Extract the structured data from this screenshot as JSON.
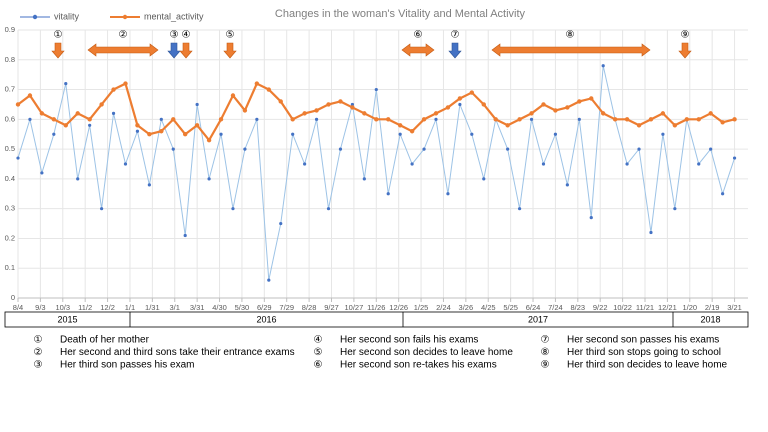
{
  "chart_data": {
    "type": "line",
    "title": "Changes in the woman's Vitality and Mental Activity",
    "x": [
      0,
      16,
      32,
      48,
      64,
      80,
      96,
      112,
      128,
      144,
      160,
      176,
      192,
      208,
      224,
      240,
      256,
      272,
      288,
      304,
      320,
      336,
      352,
      368,
      384,
      400,
      416,
      432,
      448,
      464,
      480,
      496,
      512,
      528,
      544,
      560,
      576,
      592,
      608,
      624,
      640,
      656,
      672,
      688,
      704,
      720,
      736,
      752,
      768,
      784,
      800,
      816,
      832,
      848,
      864,
      880,
      896,
      912,
      928,
      944,
      960
    ],
    "series": [
      {
        "name": "vitality",
        "color": "#4472c4",
        "values": [
          0.47,
          0.6,
          0.42,
          0.55,
          0.72,
          0.4,
          0.58,
          0.3,
          0.62,
          0.45,
          0.56,
          0.38,
          0.6,
          0.5,
          0.21,
          0.65,
          0.4,
          0.55,
          0.3,
          0.5,
          0.6,
          0.06,
          0.25,
          0.55,
          0.45,
          0.6,
          0.3,
          0.5,
          0.65,
          0.4,
          0.7,
          0.35,
          0.55,
          0.45,
          0.5,
          0.6,
          0.35,
          0.65,
          0.55,
          0.4,
          0.6,
          0.5,
          0.3,
          0.6,
          0.45,
          0.55,
          0.38,
          0.6,
          0.27,
          0.78,
          0.6,
          0.45,
          0.5,
          0.22,
          0.55,
          0.3,
          0.6,
          0.45,
          0.5,
          0.35,
          0.47
        ]
      },
      {
        "name": "mental_activity",
        "color": "#ed7d31",
        "values": [
          0.65,
          0.68,
          0.62,
          0.6,
          0.58,
          0.62,
          0.6,
          0.65,
          0.7,
          0.72,
          0.58,
          0.55,
          0.56,
          0.6,
          0.55,
          0.58,
          0.53,
          0.6,
          0.68,
          0.63,
          0.72,
          0.7,
          0.66,
          0.6,
          0.62,
          0.63,
          0.65,
          0.66,
          0.64,
          0.62,
          0.6,
          0.6,
          0.58,
          0.56,
          0.6,
          0.62,
          0.64,
          0.67,
          0.69,
          0.65,
          0.6,
          0.58,
          0.6,
          0.62,
          0.65,
          0.63,
          0.64,
          0.66,
          0.67,
          0.62,
          0.6,
          0.6,
          0.58,
          0.6,
          0.62,
          0.58,
          0.6,
          0.6,
          0.62,
          0.59,
          0.6
        ]
      }
    ],
    "xlim": [
      0,
      978
    ],
    "xticks": [
      {
        "value": 0,
        "label": "8/4"
      },
      {
        "value": 30,
        "label": "9/3"
      },
      {
        "value": 60,
        "label": "10/3"
      },
      {
        "value": 90,
        "label": "11/2"
      },
      {
        "value": 120,
        "label": "12/2"
      },
      {
        "value": 150,
        "label": "1/1"
      },
      {
        "value": 180,
        "label": "1/31"
      },
      {
        "value": 210,
        "label": "3/1"
      },
      {
        "value": 240,
        "label": "3/31"
      },
      {
        "value": 270,
        "label": "4/30"
      },
      {
        "value": 300,
        "label": "5/30"
      },
      {
        "value": 330,
        "label": "6/29"
      },
      {
        "value": 360,
        "label": "7/29"
      },
      {
        "value": 390,
        "label": "8/28"
      },
      {
        "value": 420,
        "label": "9/27"
      },
      {
        "value": 450,
        "label": "10/27"
      },
      {
        "value": 480,
        "label": "11/26"
      },
      {
        "value": 510,
        "label": "12/26"
      },
      {
        "value": 540,
        "label": "1/25"
      },
      {
        "value": 570,
        "label": "2/24"
      },
      {
        "value": 600,
        "label": "3/26"
      },
      {
        "value": 630,
        "label": "4/25"
      },
      {
        "value": 660,
        "label": "5/25"
      },
      {
        "value": 690,
        "label": "6/24"
      },
      {
        "value": 720,
        "label": "7/24"
      },
      {
        "value": 750,
        "label": "8/23"
      },
      {
        "value": 780,
        "label": "9/22"
      },
      {
        "value": 810,
        "label": "10/22"
      },
      {
        "value": 840,
        "label": "11/21"
      },
      {
        "value": 870,
        "label": "12/21"
      },
      {
        "value": 900,
        "label": "1/20"
      },
      {
        "value": 930,
        "label": "2/19"
      },
      {
        "value": 960,
        "label": "3/21"
      }
    ],
    "ylim": [
      0,
      0.9
    ],
    "yticks": [
      0,
      0.1,
      0.2,
      0.3,
      0.4,
      0.5,
      0.6,
      0.7,
      0.8,
      0.9
    ],
    "grid": true,
    "years": [
      "2015",
      "2016",
      "2017",
      "2018"
    ],
    "annotations": [
      "①",
      "②",
      "③",
      "④",
      "⑤",
      "⑥",
      "⑦",
      "⑧",
      "⑨"
    ],
    "notes": [
      {
        "num": "①",
        "text": "Death of her mother"
      },
      {
        "num": "②",
        "text": "Her second and third sons take their entrance exams"
      },
      {
        "num": "③",
        "text": "Her third son passes his exam"
      },
      {
        "num": "④",
        "text": "Her second son fails his exams"
      },
      {
        "num": "⑤",
        "text": "Her second son decides to leave home"
      },
      {
        "num": "⑥",
        "text": "Her second son re-takes his exams"
      },
      {
        "num": "⑦",
        "text": "Her second son passes his exams"
      },
      {
        "num": "⑧",
        "text": "Her third son stops going to school"
      },
      {
        "num": "⑨",
        "text": "Her third son decides to leave home"
      }
    ]
  }
}
